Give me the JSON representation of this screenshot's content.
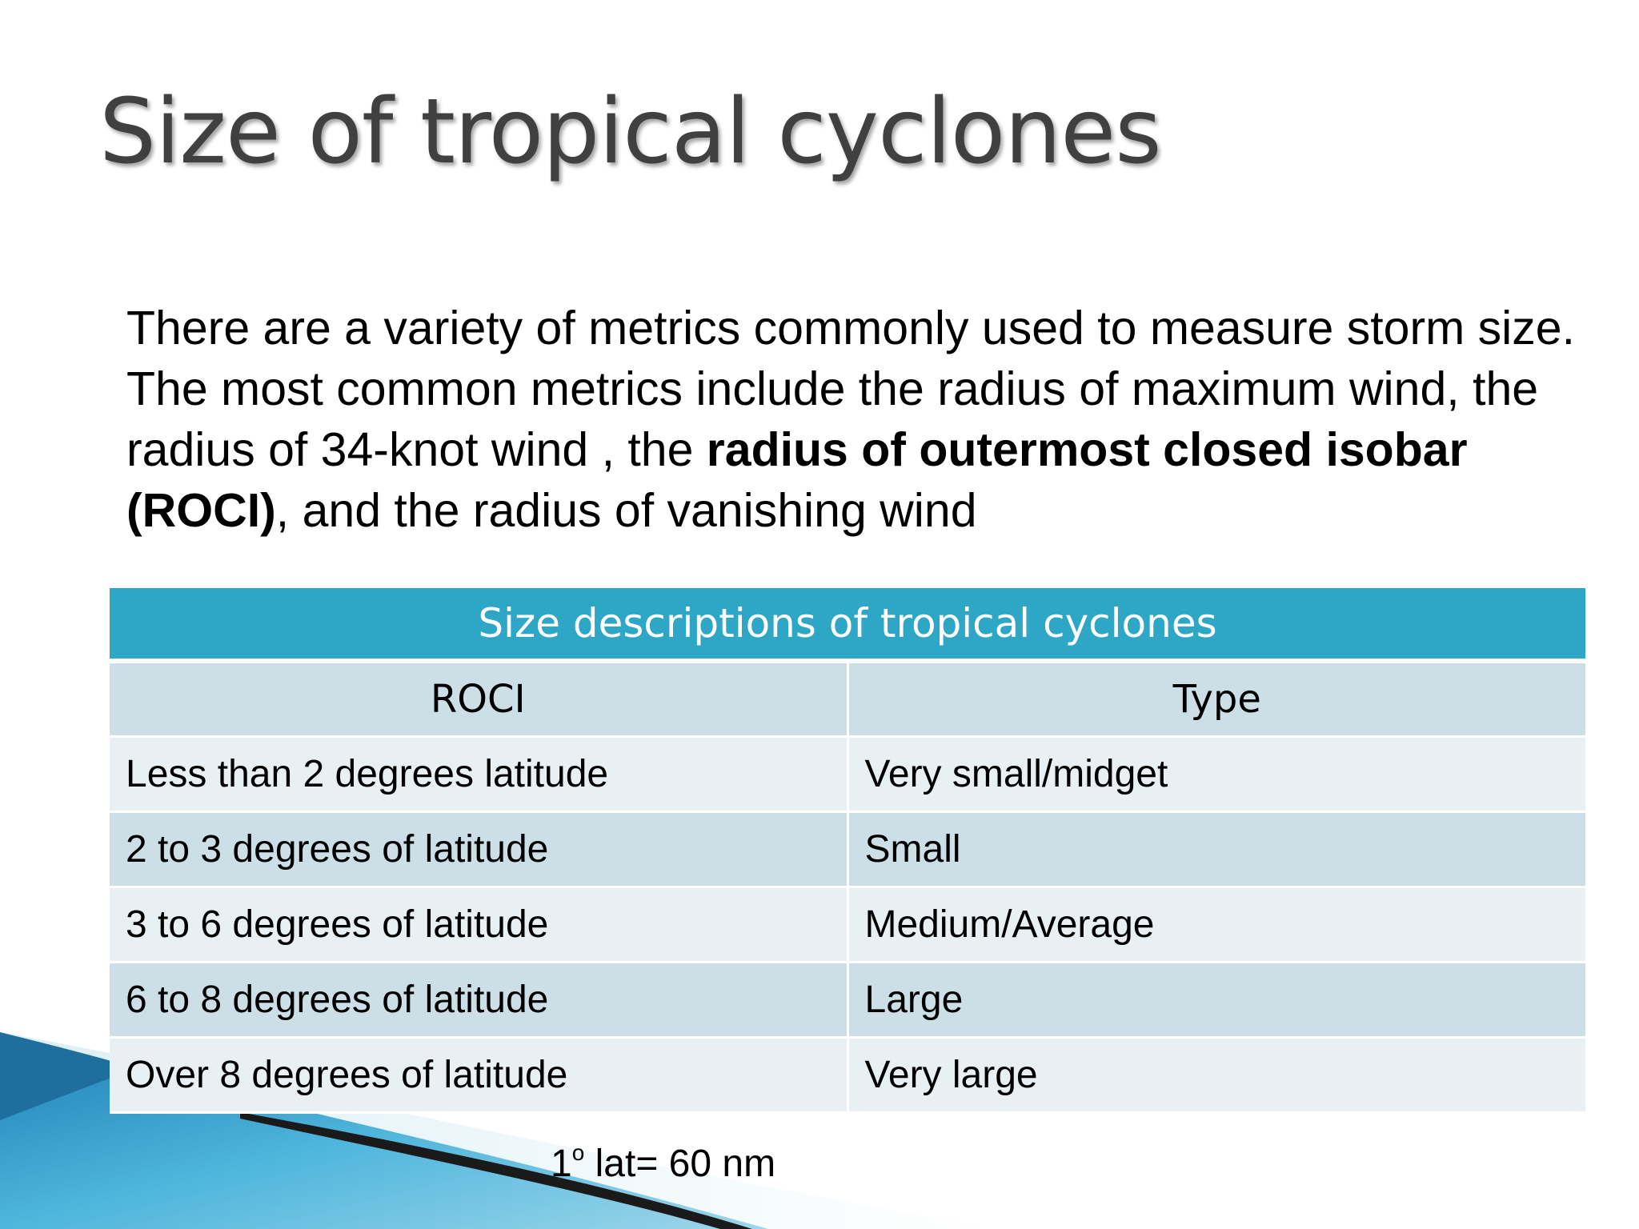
{
  "slide": {
    "title": "Size of tropical cyclones",
    "body": {
      "part1": "There are a variety of metrics commonly used to measure storm size. The most common metrics include the radius of maximum wind, the radius of 34-knot wind , the ",
      "bold": "radius of outermost closed isobar (ROCI)",
      "part2": ", and the radius of vanishing wind"
    },
    "table": {
      "caption": "Size descriptions of tropical cyclones",
      "headers": [
        "ROCI",
        "Type"
      ],
      "rows": [
        {
          "roci": "Less than 2 degrees latitude",
          "type": "Very small/midget"
        },
        {
          "roci": "2 to 3 degrees of latitude",
          "type": "Small"
        },
        {
          "roci": "3 to 6 degrees of latitude",
          "type": "Medium/Average"
        },
        {
          "roci": "6 to 8 degrees of latitude",
          "type": "Large"
        },
        {
          "roci": "Over 8 degrees of latitude",
          "type": "Very large"
        }
      ]
    },
    "footnote": {
      "number": "1",
      "superscript": "o",
      "text": " lat= 60 nm"
    }
  },
  "colors": {
    "caption_bg": "#2ea6c6",
    "row_light": "#e9f0f3",
    "row_dark": "#cddfe6",
    "swoosh_blue": "#3aa7d2",
    "swoosh_dark": "#1a1a1a"
  }
}
